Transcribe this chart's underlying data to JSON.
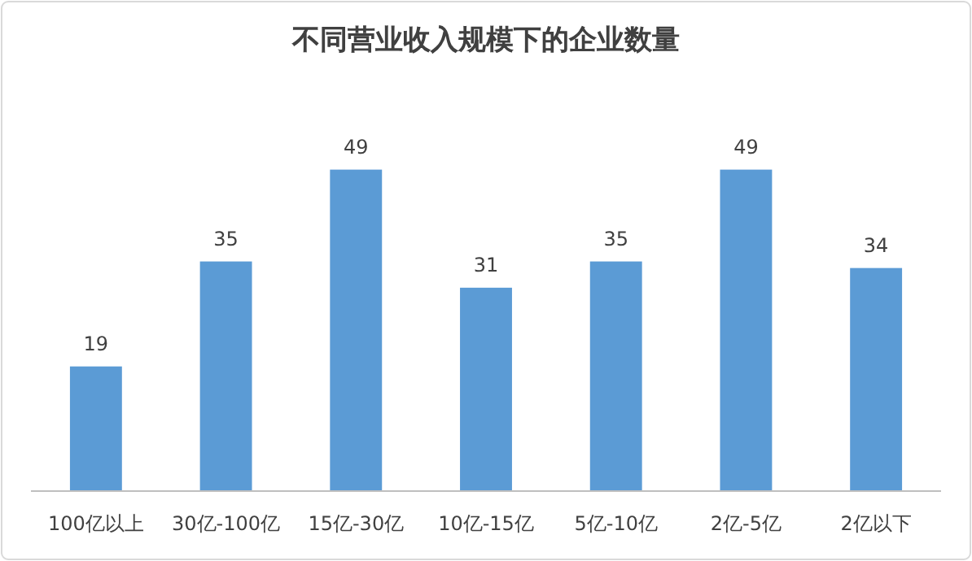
{
  "chart_data": {
    "type": "bar",
    "title": "不同营业收入规模下的企业数量",
    "categories": [
      "100亿以上",
      "30亿-100亿",
      "15亿-30亿",
      "10亿-15亿",
      "5亿-10亿",
      "2亿-5亿",
      "2亿以下"
    ],
    "values": [
      19,
      35,
      49,
      31,
      35,
      49,
      34
    ],
    "color": "#5b9bd5",
    "data_labels": true,
    "grid": false
  }
}
